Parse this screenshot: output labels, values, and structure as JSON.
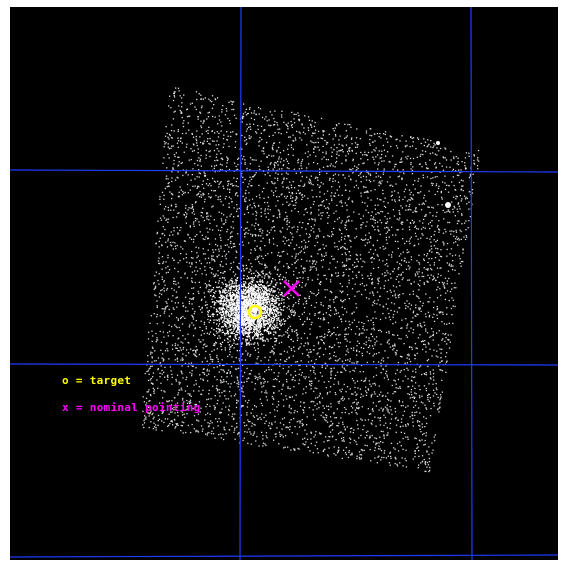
{
  "image": {
    "background_color": "#000000",
    "frame_color": "#ffffff",
    "grid_color": "#1f3cff",
    "event_color": "#d9d9d9"
  },
  "markers": {
    "target": {
      "symbol": "circle",
      "color": "#ffff00"
    },
    "nominal_pointing": {
      "symbol": "cross",
      "color": "#ff00ff"
    }
  },
  "legend": {
    "target_text": "o = target",
    "target_color": "#ffff00",
    "pointing_text": "x = nominal pointing",
    "pointing_color": "#ff00ff"
  }
}
